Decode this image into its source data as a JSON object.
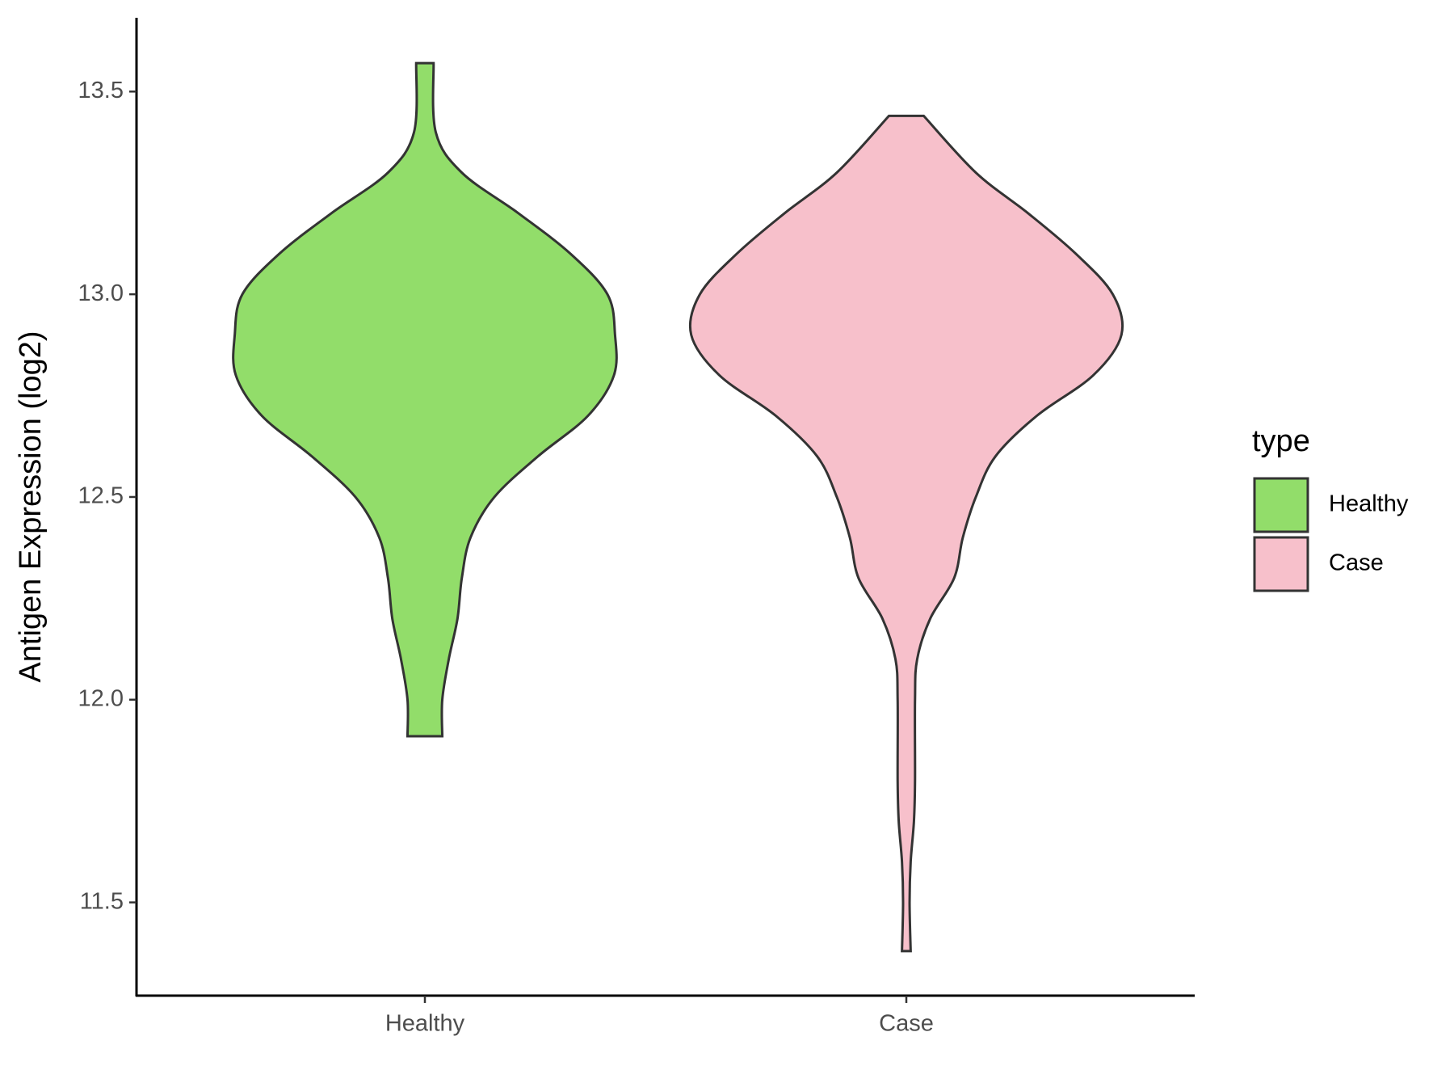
{
  "chart_data": {
    "type": "violin",
    "y_label": "Antigen Expression (log2)",
    "categories": [
      "Healthy",
      "Case"
    ],
    "ylim": [
      11.27,
      13.68
    ],
    "yticks": [
      {
        "value": 11.5,
        "label": "11.5"
      },
      {
        "value": 12,
        "label": "12.0"
      },
      {
        "value": 12.5,
        "label": "12.5"
      },
      {
        "value": 13,
        "label": "13.0"
      },
      {
        "value": 13.5,
        "label": "13.5"
      }
    ],
    "legend_title": "type",
    "legend_position": "right",
    "series": [
      {
        "name": "Healthy",
        "color": "#92dd6a",
        "values": [
          13.57,
          13.4,
          13.3,
          13.2,
          13.1,
          13.0,
          12.9,
          12.8,
          12.7,
          12.6,
          12.5,
          12.4,
          12.3,
          12.2,
          12.1,
          12.0,
          11.91
        ],
        "density": [
          0.04,
          0.05,
          0.17,
          0.43,
          0.67,
          0.84,
          0.875,
          0.87,
          0.75,
          0.52,
          0.32,
          0.21,
          0.17,
          0.15,
          0.11,
          0.08,
          0.08
        ]
      },
      {
        "name": "Case",
        "color": "#f7c0cb",
        "values": [
          13.44,
          13.3,
          13.2,
          13.1,
          13.0,
          12.9,
          12.8,
          12.7,
          12.6,
          12.5,
          12.4,
          12.3,
          12.2,
          12.1,
          12.0,
          11.8,
          11.7,
          11.6,
          11.5,
          11.38
        ],
        "density": [
          0.08,
          0.32,
          0.56,
          0.78,
          0.95,
          0.99,
          0.86,
          0.6,
          0.41,
          0.32,
          0.26,
          0.22,
          0.11,
          0.05,
          0.04,
          0.04,
          0.035,
          0.02,
          0.015,
          0.02
        ]
      }
    ]
  }
}
